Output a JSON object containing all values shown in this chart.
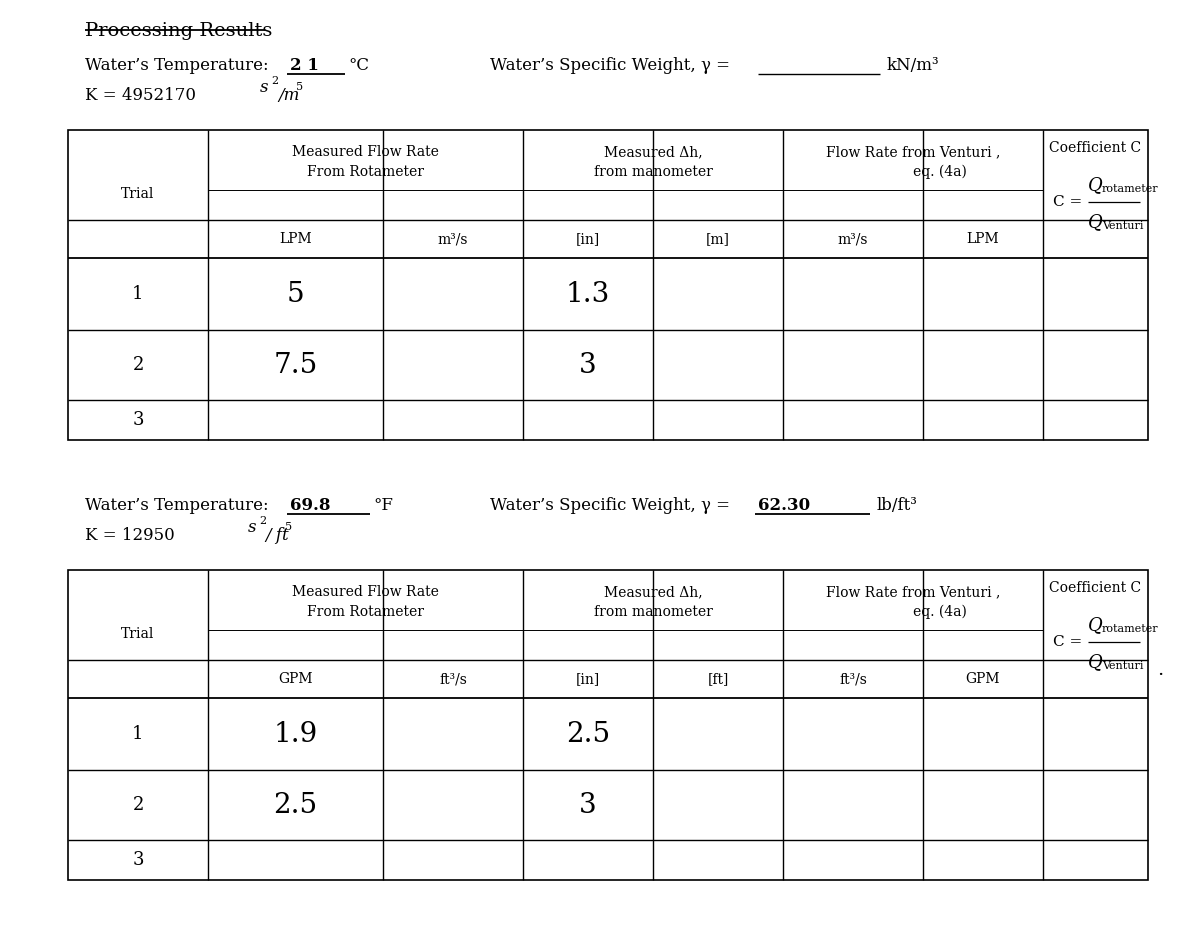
{
  "title": "Processing Results",
  "section1": {
    "temp_label": "Water’s Temperature:",
    "temp_value": "2 1",
    "temp_unit": "°C",
    "weight_label": "Water’s Specific Weight, γ =",
    "weight_unit": "kN/m³",
    "k_text": "K = 4952170",
    "k_sup1": "s",
    "k_sup1_exp": "2",
    "k_sub": "/ m",
    "k_sub_exp": "5",
    "sub_headers": [
      "LPM",
      "m³/s",
      "[in]",
      "[m]",
      "m³/s",
      "LPM"
    ],
    "data": [
      [
        "1",
        "5",
        "",
        "1.3",
        "",
        "",
        "",
        ""
      ],
      [
        "2",
        "7.5",
        "",
        "3",
        "",
        "",
        "",
        ""
      ],
      [
        "3",
        "",
        "",
        "",
        "",
        "",
        "",
        ""
      ]
    ]
  },
  "section2": {
    "temp_label": "Water’s Temperature:",
    "temp_value": "69.8",
    "temp_unit": "°F",
    "weight_label": "Water’s Specific Weight, γ =",
    "weight_value": "62.30",
    "weight_unit": "lb/ft³",
    "k_text": "K = 12950",
    "k_sup1": "s",
    "k_sup1_exp": "2",
    "k_sub": "/ ft",
    "k_sub_exp": "5",
    "sub_headers": [
      "GPM",
      "ft³/s",
      "[in]",
      "[ft]",
      "ft³/s",
      "GPM"
    ],
    "data": [
      [
        "1",
        "1.9",
        "",
        "2.5",
        "",
        "",
        "",
        ""
      ],
      [
        "2",
        "2.5",
        "",
        "3",
        "",
        "",
        "",
        ""
      ],
      [
        "3",
        "",
        "",
        "",
        "",
        "",
        "",
        ""
      ]
    ]
  },
  "bg_color": "#ffffff",
  "text_color": "#000000",
  "line_color": "#000000",
  "fs_title": 14,
  "fs_label": 12,
  "fs_header": 10,
  "fs_subheader": 10,
  "fs_data_large": 20,
  "fs_data_small": 13,
  "fs_coeff": 11,
  "fs_coeff_sub": 8
}
